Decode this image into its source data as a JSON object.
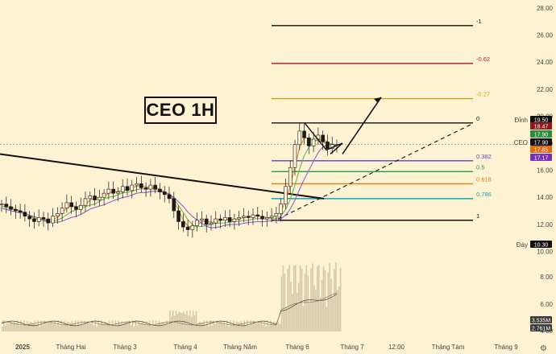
{
  "chart_data": {
    "type": "candlestick",
    "title": "CEO 1H",
    "symbol": "CEO",
    "y_axis": {
      "ticks": [
        28.0,
        26.0,
        24.0,
        22.0,
        20.0,
        18.0,
        16.0,
        14.0,
        12.0,
        10.0
      ],
      "tick_labels": [
        "28.00",
        "26.00",
        "24.00",
        "22.00",
        "20.00",
        "18.00",
        "16.00",
        "14.00",
        "12.00",
        "10.00"
      ],
      "range": [
        9.8,
        28.4
      ]
    },
    "volume_axis": {
      "tick_labels": [
        "8.00",
        "6.00",
        "4.00"
      ]
    },
    "x_axis": {
      "labels": [
        "2025",
        "Tháng Hai",
        "Tháng 3",
        "Tháng 4",
        "Tháng Năm",
        "Tháng 6",
        "Tháng 7",
        "12:00",
        "Tháng Tám",
        "Tháng 9"
      ]
    },
    "fibonacci": [
      {
        "level": "-1",
        "price": 26.7,
        "color": "#111111"
      },
      {
        "level": "-0.62",
        "price": 23.9,
        "color": "#b0203a"
      },
      {
        "level": "-0.27",
        "price": 21.3,
        "color": "#c9a21a"
      },
      {
        "level": "0",
        "price": 19.5,
        "color": "#111111"
      },
      {
        "level": "0.382",
        "price": 16.7,
        "color": "#6a3fb5"
      },
      {
        "level": "0.5",
        "price": 15.9,
        "color": "#1f9a4a"
      },
      {
        "level": "0.618",
        "price": 15.0,
        "color": "#e07b12"
      },
      {
        "level": "0.786",
        "price": 13.9,
        "color": "#1aa3b8"
      },
      {
        "level": "1",
        "price": 12.3,
        "color": "#111111"
      }
    ],
    "price_tags": [
      {
        "label": "Đỉnh",
        "value": "19.50",
        "color": "#111111"
      },
      {
        "value": "18.47",
        "color": "#8b1a1a"
      },
      {
        "value": "17.90",
        "color": "#2c8a3c"
      },
      {
        "label": "CEO",
        "value": "17.90",
        "color": "#111111"
      },
      {
        "value": "17.85",
        "color": "#e06a12"
      },
      {
        "value": "17.17",
        "color": "#7a2fb5"
      },
      {
        "label": "Đáy",
        "value": "10.30",
        "color": "#111111"
      }
    ],
    "volume_tags": [
      {
        "value": "3.535M",
        "color": "#3b3b3b"
      },
      {
        "value": "2.761M",
        "color": "#3b3b3b"
      }
    ],
    "price_series": [
      13.5,
      13.3,
      13.1,
      13.0,
      12.9,
      12.6,
      12.4,
      12.2,
      12.5,
      12.4,
      12.1,
      12.6,
      12.8,
      13.2,
      13.6,
      13.3,
      13.1,
      13.4,
      13.9,
      14.1,
      13.8,
      14.0,
      14.3,
      14.6,
      14.3,
      14.4,
      14.8,
      14.5,
      14.9,
      15.0,
      14.7,
      14.6,
      14.9,
      14.6,
      14.4,
      14.2,
      13.9,
      13.0,
      12.2,
      11.8,
      11.6,
      11.9,
      12.3,
      12.4,
      12.0,
      12.1,
      12.4,
      12.3,
      12.5,
      12.2,
      12.4,
      12.5,
      12.6,
      12.5,
      12.7,
      12.6,
      12.4,
      12.5,
      12.6,
      12.8,
      13.5,
      14.8,
      16.2,
      17.9,
      18.9,
      18.4,
      17.8,
      18.3,
      18.6,
      18.1,
      17.6,
      17.9,
      17.9
    ],
    "ma_lines": [
      {
        "name": "",
        "color": "#d98b3a"
      },
      {
        "name": "",
        "color": "#6bb35c"
      },
      {
        "name": "",
        "color": "#9a5fc8"
      }
    ],
    "trendlines": [
      {
        "kind": "descending",
        "from": [
          "2025",
          17.2
        ],
        "to": [
          "Tháng 6",
          13.9
        ]
      },
      {
        "kind": "ascending-dashed",
        "from": [
          "Tháng 6",
          12.4
        ],
        "to": [
          "Tháng 7",
          19.4
        ]
      }
    ],
    "projection_arrow": {
      "from": 17.2,
      "to": 21.4
    }
  },
  "ui": {
    "settings_icon": "gear-icon"
  }
}
